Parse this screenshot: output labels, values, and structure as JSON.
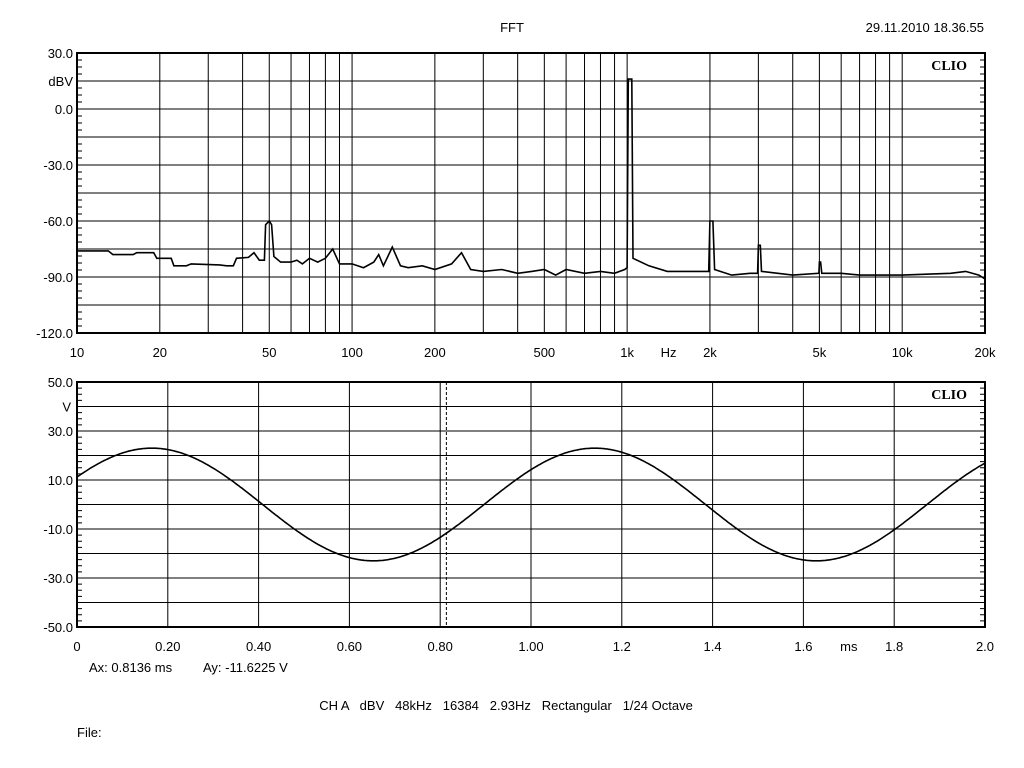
{
  "header": {
    "title": "FFT",
    "timestamp": "29.11.2010 18.36.55"
  },
  "footer": {
    "cursor_x": "Ax: 0.8136 ms",
    "cursor_y": "Ay: -11.6225 V",
    "settings": "CH A   dBV   48kHz   16384   2.93Hz   Rectangular   1/24 Octave",
    "file_label": "File:"
  },
  "colors": {
    "trace": "#000000",
    "grid": "#000000",
    "background": "#ffffff"
  },
  "chart_data": [
    {
      "type": "line",
      "title": "FFT",
      "logo": "CLIO",
      "xscale": "log",
      "xlim": [
        10,
        20000
      ],
      "ylim": [
        -120,
        30
      ],
      "ylabel": "dBV",
      "xunit": "Hz",
      "grid": true,
      "yticks": [
        "30.0",
        "0.0",
        "-30.0",
        "-60.0",
        "-90.0",
        "-120.0"
      ],
      "ytick_values": [
        30,
        0,
        -30,
        -60,
        -90,
        -120
      ],
      "xticks": [
        "10",
        "20",
        "50",
        "100",
        "200",
        "500",
        "1k",
        "2k",
        "5k",
        "10k",
        "20k"
      ],
      "xtick_values": [
        10,
        20,
        50,
        100,
        200,
        500,
        1000,
        2000,
        5000,
        10000,
        20000
      ],
      "points": [
        [
          10,
          -76
        ],
        [
          13,
          -76
        ],
        [
          13.5,
          -78
        ],
        [
          16,
          -78
        ],
        [
          16.5,
          -77
        ],
        [
          19,
          -77
        ],
        [
          19.5,
          -80
        ],
        [
          22,
          -80
        ],
        [
          22.5,
          -84
        ],
        [
          25,
          -84
        ],
        [
          26,
          -83
        ],
        [
          33,
          -83.5
        ],
        [
          35,
          -84
        ],
        [
          37,
          -84
        ],
        [
          38,
          -80
        ],
        [
          42,
          -79.5
        ],
        [
          44,
          -77
        ],
        [
          46,
          -81
        ],
        [
          48,
          -81
        ],
        [
          48.5,
          -62
        ],
        [
          50,
          -60
        ],
        [
          51,
          -62
        ],
        [
          52,
          -79
        ],
        [
          55,
          -82
        ],
        [
          60,
          -82
        ],
        [
          63,
          -81
        ],
        [
          66,
          -83
        ],
        [
          70,
          -80
        ],
        [
          75,
          -82
        ],
        [
          80,
          -80
        ],
        [
          85,
          -75
        ],
        [
          90,
          -83
        ],
        [
          100,
          -83
        ],
        [
          110,
          -85
        ],
        [
          120,
          -82
        ],
        [
          125,
          -78
        ],
        [
          130,
          -84
        ],
        [
          140,
          -74
        ],
        [
          150,
          -84
        ],
        [
          160,
          -85
        ],
        [
          180,
          -84
        ],
        [
          200,
          -86
        ],
        [
          230,
          -83
        ],
        [
          250,
          -77
        ],
        [
          270,
          -86
        ],
        [
          300,
          -87
        ],
        [
          350,
          -86
        ],
        [
          400,
          -88
        ],
        [
          450,
          -87
        ],
        [
          500,
          -86
        ],
        [
          550,
          -89
        ],
        [
          600,
          -86
        ],
        [
          700,
          -88
        ],
        [
          800,
          -87
        ],
        [
          900,
          -88
        ],
        [
          980,
          -86
        ],
        [
          1000,
          -85
        ],
        [
          1010,
          16
        ],
        [
          1040,
          16
        ],
        [
          1050,
          -80
        ],
        [
          1200,
          -84
        ],
        [
          1400,
          -87
        ],
        [
          1600,
          -87
        ],
        [
          1800,
          -87
        ],
        [
          1980,
          -87
        ],
        [
          2000,
          -60
        ],
        [
          2050,
          -60
        ],
        [
          2080,
          -86
        ],
        [
          2400,
          -89
        ],
        [
          2800,
          -88
        ],
        [
          2980,
          -88
        ],
        [
          3000,
          -73
        ],
        [
          3050,
          -73
        ],
        [
          3080,
          -87
        ],
        [
          4000,
          -89
        ],
        [
          4980,
          -88
        ],
        [
          5000,
          -82
        ],
        [
          5050,
          -82
        ],
        [
          5100,
          -88
        ],
        [
          6000,
          -88
        ],
        [
          7000,
          -89
        ],
        [
          8000,
          -89
        ],
        [
          10000,
          -89
        ],
        [
          15000,
          -88
        ],
        [
          17000,
          -87
        ],
        [
          19000,
          -89
        ],
        [
          20000,
          -91
        ]
      ]
    },
    {
      "type": "line",
      "logo": "CLIO",
      "xlim": [
        0,
        2.0
      ],
      "ylim": [
        -50,
        50
      ],
      "ylabel": "V",
      "xunit": "ms",
      "grid": true,
      "yticks": [
        "50.0",
        "30.0",
        "10.0",
        "-10.0",
        "-30.0",
        "-50.0"
      ],
      "ytick_values": [
        50,
        30,
        10,
        -10,
        -30,
        -50
      ],
      "xticks": [
        "0",
        "0.20",
        "0.40",
        "0.60",
        "0.80",
        "1.00",
        "1.2",
        "1.4",
        "1.6",
        "1.8",
        "2.0"
      ],
      "xtick_values": [
        0,
        0.2,
        0.4,
        0.6,
        0.8,
        1.0,
        1.2,
        1.4,
        1.6,
        1.8,
        2.0
      ],
      "waveform": {
        "shape": "sine",
        "amplitude_v": 23,
        "frequency_khz": 1.025,
        "phase_offset_ms": -0.079
      },
      "cursor_x_ms": 0.8136
    }
  ]
}
